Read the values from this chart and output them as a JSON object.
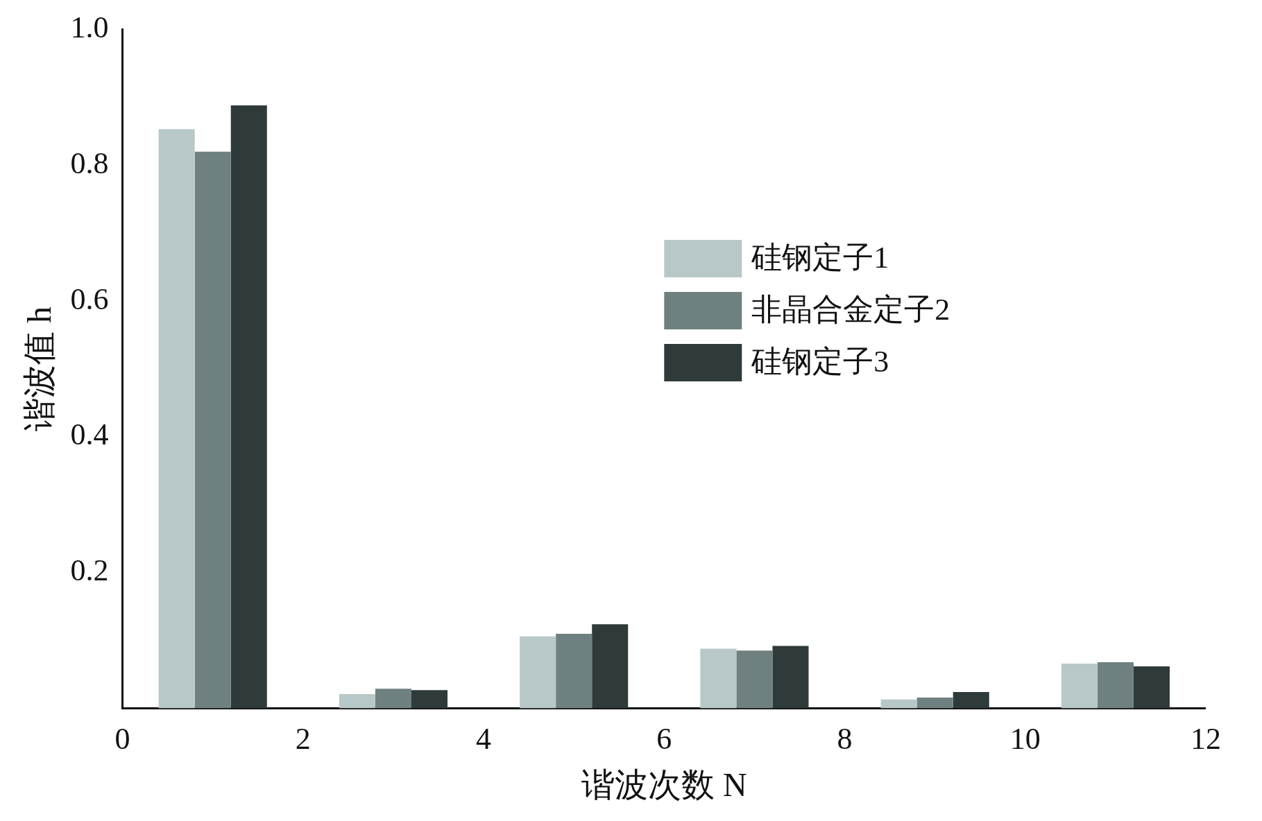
{
  "chart_data": {
    "type": "bar",
    "xlabel": "谐波次数 N",
    "ylabel": "谐波值 h",
    "x": [
      1,
      3,
      5,
      7,
      9,
      11
    ],
    "series": [
      {
        "name": "硅钢定子1",
        "color": "#b8c8c8",
        "values": [
          0.853,
          0.021,
          0.106,
          0.088,
          0.013,
          0.066
        ]
      },
      {
        "name": "非晶合金定子2",
        "color": "#6e8080",
        "values": [
          0.82,
          0.029,
          0.11,
          0.085,
          0.016,
          0.068
        ]
      },
      {
        "name": "硅钢定子3",
        "color": "#2f3a3a",
        "values": [
          0.888,
          0.027,
          0.124,
          0.092,
          0.024,
          0.062
        ]
      }
    ],
    "xlim": [
      0,
      12
    ],
    "xticks": [
      0,
      2,
      4,
      6,
      8,
      10,
      12
    ],
    "ylim": [
      0,
      1
    ],
    "yticks": [
      0.2,
      0.4,
      0.6,
      0.8,
      {
        "value": 1,
        "label": "1.0"
      }
    ],
    "grid": false,
    "legend": "right"
  }
}
